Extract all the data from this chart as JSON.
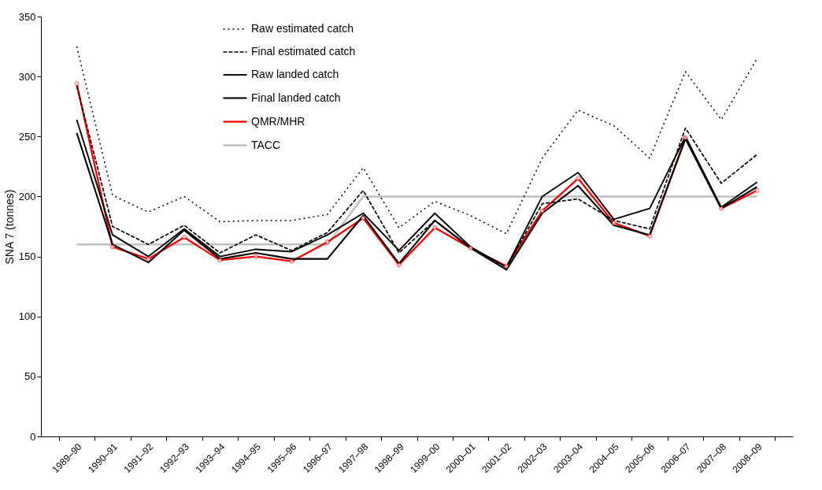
{
  "chart_data": {
    "type": "line",
    "ylabel": "SNA 7 (tonnes)",
    "categories": [
      "1989–90",
      "1990–91",
      "1991–92",
      "1992–93",
      "1993–94",
      "1994–95",
      "1995–96",
      "1996–97",
      "1997–98",
      "1998–99",
      "1999–00",
      "2000–01",
      "2001–02",
      "2002–03",
      "2003–04",
      "2004–05",
      "2005–06",
      "2006–07",
      "2007–08",
      "2008–09"
    ],
    "series": [
      {
        "name": "Raw estimated catch",
        "color": "#000000",
        "line_style": "dotted",
        "values": [
          325,
          201,
          187,
          200,
          179,
          180,
          180,
          185,
          224,
          174,
          196,
          184,
          169,
          232,
          272,
          259,
          232,
          304,
          264,
          315
        ]
      },
      {
        "name": "Final estimated catch",
        "color": "#000000",
        "line_style": "dashed",
        "values": [
          292,
          175,
          160,
          176,
          153,
          168,
          155,
          170,
          205,
          153,
          180,
          157,
          141,
          194,
          198,
          180,
          173,
          257,
          211,
          235
        ]
      },
      {
        "name": "Raw landed catch",
        "color": "#000000",
        "line_style": "solid",
        "values": [
          264,
          168,
          150,
          173,
          150,
          156,
          154,
          168,
          186,
          155,
          186,
          158,
          141,
          200,
          220,
          181,
          190,
          250,
          191,
          212
        ]
      },
      {
        "name": "Final landed catch",
        "color": "#000000",
        "line_style": "solid",
        "values": [
          253,
          160,
          145,
          172,
          148,
          153,
          148,
          148,
          184,
          144,
          180,
          157,
          139,
          186,
          209,
          176,
          168,
          248,
          190,
          208
        ]
      },
      {
        "name": "QMR/MHR",
        "color": "#ff0000",
        "line_style": "solid",
        "marker": "circle",
        "values": [
          294,
          158,
          148,
          166,
          147,
          150,
          146,
          162,
          182,
          143,
          174,
          157,
          142,
          188,
          215,
          178,
          167,
          249,
          190,
          205
        ]
      },
      {
        "name": "TACC",
        "color": "#c0c0c0",
        "line_style": "solid",
        "values": [
          160,
          160,
          160,
          160,
          160,
          160,
          160,
          160,
          200,
          200,
          200,
          200,
          200,
          200,
          200,
          200,
          200,
          200,
          200,
          200
        ]
      }
    ],
    "ylim": [
      0,
      350
    ],
    "yticks": [
      0,
      50,
      100,
      150,
      200,
      250,
      300,
      350
    ],
    "grid": false,
    "legend": "top"
  }
}
